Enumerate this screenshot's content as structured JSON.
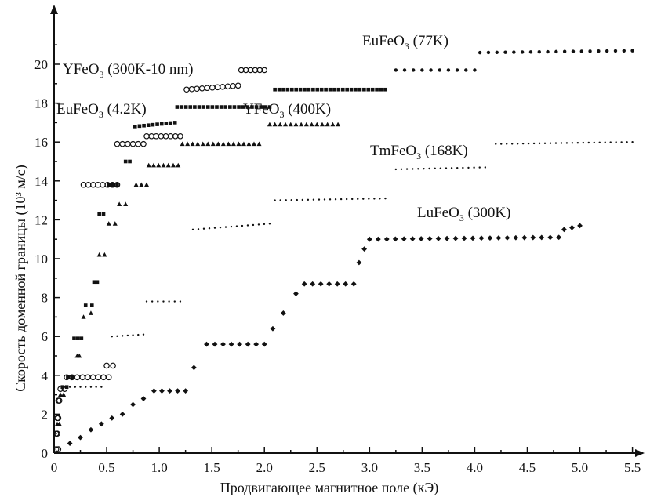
{
  "chart_data": {
    "type": "scatter",
    "title": "",
    "xlabel": "Продвигающее магнитное поле (кЭ)",
    "ylabel": "Скорость доменной границы (10³ м/с)",
    "xlim": [
      0,
      5.6
    ],
    "ylim": [
      0,
      22
    ],
    "x_ticks": [
      "0",
      "0.5",
      "1.0",
      "1.5",
      "2.0",
      "2.5",
      "3.0",
      "3.5",
      "4.0",
      "4.5",
      "5.0",
      "5.5"
    ],
    "y_ticks": [
      "0",
      "2",
      "4",
      "6",
      "8",
      "10",
      "12",
      "14",
      "16",
      "18",
      "20"
    ],
    "grid": false,
    "legend": "none",
    "series": [
      {
        "name": "YFeO3 (300K-10 nm)",
        "label_main": "YFeO",
        "label_sub": "3",
        "label_rest": " (300K-10 nm)",
        "marker": "open-circle",
        "segments": [
          {
            "x": [
              0.02,
              0.04
            ],
            "y": [
              0.2,
              0.2
            ]
          },
          {
            "x": [
              0.02,
              0.03
            ],
            "y": [
              1.0,
              1.0
            ]
          },
          {
            "x": [
              0.03,
              0.04
            ],
            "y": [
              1.8,
              1.8
            ]
          },
          {
            "x": [
              0.04,
              0.05
            ],
            "y": [
              2.7,
              2.7
            ]
          },
          {
            "x": [
              0.06,
              0.1
            ],
            "y": [
              3.3,
              3.3
            ]
          },
          {
            "x": [
              0.12,
              0.52
            ],
            "y": [
              3.9,
              3.9
            ]
          },
          {
            "x": [
              0.5,
              0.56
            ],
            "y": [
              4.5,
              4.5
            ]
          },
          {
            "x": [
              0.28,
              0.6
            ],
            "y": [
              13.8,
              13.8
            ]
          },
          {
            "x": [
              0.6,
              0.85
            ],
            "y": [
              15.9,
              15.9
            ]
          },
          {
            "x": [
              0.88,
              1.2
            ],
            "y": [
              16.3,
              16.3
            ]
          },
          {
            "x": [
              1.26,
              1.75
            ],
            "y": [
              18.7,
              18.9
            ]
          },
          {
            "x": [
              1.78,
              2.0
            ],
            "y": [
              19.7,
              19.7
            ]
          }
        ]
      },
      {
        "name": "EuFeO3 (4.2K)",
        "label_main": "EuFeO",
        "label_sub": "3",
        "label_rest": " (4.2K)",
        "marker": "filled-square",
        "segments": [
          {
            "x": [
              0.08,
              0.12
            ],
            "y": [
              3.4,
              3.4
            ]
          },
          {
            "x": [
              0.13,
              0.17
            ],
            "y": [
              3.9,
              3.9
            ]
          },
          {
            "x": [
              0.19,
              0.26
            ],
            "y": [
              5.9,
              5.9
            ]
          },
          {
            "x": [
              0.3,
              0.36
            ],
            "y": [
              7.6,
              7.6
            ]
          },
          {
            "x": [
              0.38,
              0.41
            ],
            "y": [
              8.8,
              8.8
            ]
          },
          {
            "x": [
              0.43,
              0.47
            ],
            "y": [
              12.3,
              12.3
            ]
          },
          {
            "x": [
              0.52,
              0.6
            ],
            "y": [
              13.8,
              13.8
            ]
          },
          {
            "x": [
              0.68,
              0.72
            ],
            "y": [
              15.0,
              15.0
            ]
          },
          {
            "x": [
              0.77,
              1.15
            ],
            "y": [
              16.8,
              17.0
            ]
          },
          {
            "x": [
              1.17,
              2.05
            ],
            "y": [
              17.8,
              17.8
            ]
          },
          {
            "x": [
              2.1,
              3.15
            ],
            "y": [
              18.7,
              18.7
            ]
          }
        ]
      },
      {
        "name": "YFeO3 (400K)",
        "label_main": "YFeO",
        "label_sub": "3",
        "label_rest": " (400K)",
        "marker": "filled-triangle",
        "segments": [
          {
            "x": [
              0.03,
              0.05
            ],
            "y": [
              1.5,
              1.5
            ]
          },
          {
            "x": [
              0.06,
              0.09
            ],
            "y": [
              3.0,
              3.0
            ]
          },
          {
            "x": [
              0.22,
              0.24
            ],
            "y": [
              5.0,
              5.0
            ]
          },
          {
            "x": [
              0.28,
              0.35
            ],
            "y": [
              7.0,
              7.2
            ]
          },
          {
            "x": [
              0.43,
              0.48
            ],
            "y": [
              10.2,
              10.2
            ]
          },
          {
            "x": [
              0.52,
              0.58
            ],
            "y": [
              11.8,
              11.8
            ]
          },
          {
            "x": [
              0.62,
              0.68
            ],
            "y": [
              12.8,
              12.8
            ]
          },
          {
            "x": [
              0.78,
              0.88
            ],
            "y": [
              13.8,
              13.8
            ]
          },
          {
            "x": [
              0.9,
              1.18
            ],
            "y": [
              14.8,
              14.8
            ]
          },
          {
            "x": [
              1.22,
              1.95
            ],
            "y": [
              15.9,
              15.9
            ]
          },
          {
            "x": [
              2.05,
              2.7
            ],
            "y": [
              16.9,
              16.9
            ]
          }
        ]
      },
      {
        "name": "TmFeO3 (168K)",
        "label_main": "TmFeO",
        "label_sub": "3",
        "label_rest": " (168K)",
        "marker": "small-dot",
        "segments": [
          {
            "x": [
              0.1,
              0.45
            ],
            "y": [
              3.4,
              3.4
            ]
          },
          {
            "x": [
              0.55,
              0.85
            ],
            "y": [
              6.0,
              6.1
            ]
          },
          {
            "x": [
              0.88,
              1.2
            ],
            "y": [
              7.8,
              7.8
            ]
          },
          {
            "x": [
              1.32,
              2.05
            ],
            "y": [
              11.5,
              11.8
            ]
          },
          {
            "x": [
              2.1,
              3.15
            ],
            "y": [
              13.0,
              13.1
            ]
          },
          {
            "x": [
              3.25,
              4.1
            ],
            "y": [
              14.6,
              14.7
            ]
          },
          {
            "x": [
              4.2,
              5.5
            ],
            "y": [
              15.9,
              16.0
            ]
          }
        ]
      },
      {
        "name": "EuFeO3 (77K)",
        "label_main": "EuFeO",
        "label_sub": "3",
        "label_rest": " (77K)",
        "marker": "filled-dot",
        "segments": [
          {
            "x": [
              3.25,
              4.0
            ],
            "y": [
              19.7,
              19.7
            ]
          },
          {
            "x": [
              4.05,
              5.5
            ],
            "y": [
              20.6,
              20.7
            ]
          }
        ]
      },
      {
        "name": "LuFeO3 (300K)",
        "label_main": "LuFeO",
        "label_sub": "3",
        "label_rest": " (300K)",
        "marker": "filled-x",
        "points": [
          {
            "x": 0.15,
            "y": 0.5
          },
          {
            "x": 0.25,
            "y": 0.8
          },
          {
            "x": 0.35,
            "y": 1.2
          },
          {
            "x": 0.45,
            "y": 1.5
          },
          {
            "x": 0.55,
            "y": 1.8
          },
          {
            "x": 0.65,
            "y": 2.0
          },
          {
            "x": 0.75,
            "y": 2.5
          },
          {
            "x": 0.85,
            "y": 2.8
          }
        ],
        "segments": [
          {
            "x": [
              0.95,
              1.25
            ],
            "y": [
              3.2,
              3.2
            ]
          },
          {
            "x": [
              1.45,
              2.0
            ],
            "y": [
              5.6,
              5.6
            ]
          },
          {
            "x": [
              2.38,
              2.85
            ],
            "y": [
              8.7,
              8.7
            ]
          },
          {
            "x": [
              3.0,
              4.8
            ],
            "y": [
              11.0,
              11.1
            ]
          },
          {
            "x": [
              4.85,
              5.0
            ],
            "y": [
              11.5,
              11.7
            ]
          }
        ],
        "extra_points": [
          {
            "x": 1.33,
            "y": 4.4
          },
          {
            "x": 2.08,
            "y": 6.4
          },
          {
            "x": 2.18,
            "y": 7.2
          },
          {
            "x": 2.3,
            "y": 8.2
          },
          {
            "x": 2.9,
            "y": 9.8
          },
          {
            "x": 2.95,
            "y": 10.5
          }
        ]
      }
    ]
  }
}
